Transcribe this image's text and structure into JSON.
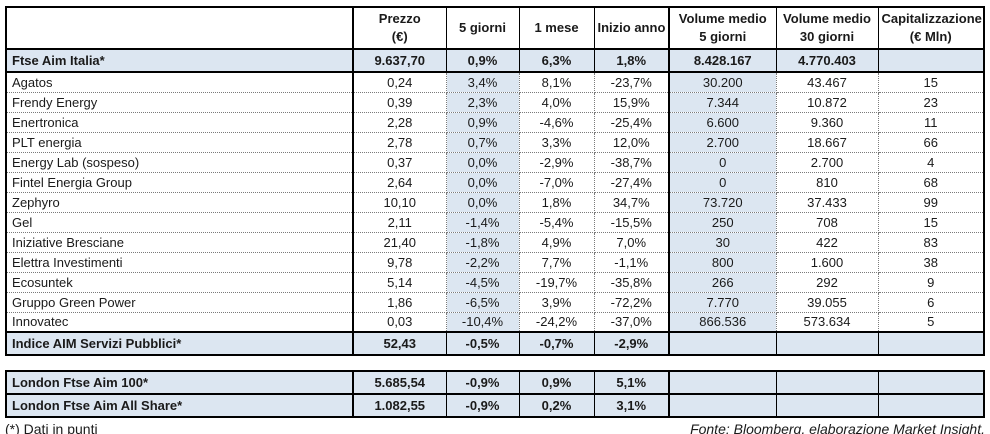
{
  "colors": {
    "highlight_blue": "#dce6f1",
    "border_black": "#000000",
    "text": "#1a1a1a"
  },
  "main_table": {
    "headers": [
      {
        "l1": "",
        "l2": ""
      },
      {
        "l1": "Prezzo",
        "l2": "(€)"
      },
      {
        "l1": "5 giorni",
        "l2": ""
      },
      {
        "l1": "1 mese",
        "l2": ""
      },
      {
        "l1": "Inizio anno",
        "l2": ""
      },
      {
        "l1": "Volume medio",
        "l2": "5 giorni"
      },
      {
        "l1": "Volume medio",
        "l2": "30 giorni"
      },
      {
        "l1": "Capitalizzazione",
        "l2": "(€ Mln)"
      }
    ],
    "rows": [
      {
        "name": "Ftse Aim Italia*",
        "type": "index",
        "values": [
          "9.637,70",
          "0,9%",
          "6,3%",
          "1,8%",
          "8.428.167",
          "4.770.403",
          ""
        ]
      },
      {
        "name": "Agatos",
        "type": "stock",
        "values": [
          "0,24",
          "3,4%",
          "8,1%",
          "-23,7%",
          "30.200",
          "43.467",
          "15"
        ]
      },
      {
        "name": "Frendy Energy",
        "type": "stock",
        "values": [
          "0,39",
          "2,3%",
          "4,0%",
          "15,9%",
          "7.344",
          "10.872",
          "23"
        ]
      },
      {
        "name": "Enertronica",
        "type": "stock",
        "values": [
          "2,28",
          "0,9%",
          "-4,6%",
          "-25,4%",
          "6.600",
          "9.360",
          "11"
        ]
      },
      {
        "name": "PLT energia",
        "type": "stock",
        "values": [
          "2,78",
          "0,7%",
          "3,3%",
          "12,0%",
          "2.700",
          "18.667",
          "66"
        ]
      },
      {
        "name": "Energy Lab (sospeso)",
        "type": "stock",
        "values": [
          "0,37",
          "0,0%",
          "-2,9%",
          "-38,7%",
          "0",
          "2.700",
          "4"
        ]
      },
      {
        "name": "Fintel Energia Group",
        "type": "stock",
        "values": [
          "2,64",
          "0,0%",
          "-7,0%",
          "-27,4%",
          "0",
          "810",
          "68"
        ]
      },
      {
        "name": "Zephyro",
        "type": "stock",
        "values": [
          "10,10",
          "0,0%",
          "1,8%",
          "34,7%",
          "73.720",
          "37.433",
          "99"
        ]
      },
      {
        "name": "Gel",
        "type": "stock",
        "values": [
          "2,11",
          "-1,4%",
          "-5,4%",
          "-15,5%",
          "250",
          "708",
          "15"
        ]
      },
      {
        "name": "Iniziative Bresciane",
        "type": "stock",
        "values": [
          "21,40",
          "-1,8%",
          "4,9%",
          "7,0%",
          "30",
          "422",
          "83"
        ]
      },
      {
        "name": "Elettra Investimenti",
        "type": "stock",
        "values": [
          "9,78",
          "-2,2%",
          "7,7%",
          "-1,1%",
          "800",
          "1.600",
          "38"
        ]
      },
      {
        "name": "Ecosuntek",
        "type": "stock",
        "values": [
          "5,14",
          "-4,5%",
          "-19,7%",
          "-35,8%",
          "266",
          "292",
          "9"
        ]
      },
      {
        "name": "Gruppo Green Power",
        "type": "stock",
        "values": [
          "1,86",
          "-6,5%",
          "3,9%",
          "-72,2%",
          "7.770",
          "39.055",
          "6"
        ]
      },
      {
        "name": "Innovatec",
        "type": "stock",
        "values": [
          "0,03",
          "-10,4%",
          "-24,2%",
          "-37,0%",
          "866.536",
          "573.634",
          "5"
        ]
      },
      {
        "name": "Indice AIM Servizi Pubblici*",
        "type": "index",
        "values": [
          "52,43",
          "-0,5%",
          "-0,7%",
          "-2,9%",
          "",
          "",
          ""
        ]
      }
    ]
  },
  "second_table": {
    "rows": [
      {
        "name": "London Ftse Aim 100*",
        "type": "index",
        "values": [
          "5.685,54",
          "-0,9%",
          "0,9%",
          "5,1%",
          "",
          "",
          ""
        ]
      },
      {
        "name": "London Ftse Aim All Share*",
        "type": "index",
        "values": [
          "1.082,55",
          "-0,9%",
          "0,2%",
          "3,1%",
          "",
          "",
          ""
        ]
      }
    ]
  },
  "footer": {
    "note": "(*) Dati in punti",
    "source": "Fonte: Bloomberg, elaborazione Market Insight."
  }
}
